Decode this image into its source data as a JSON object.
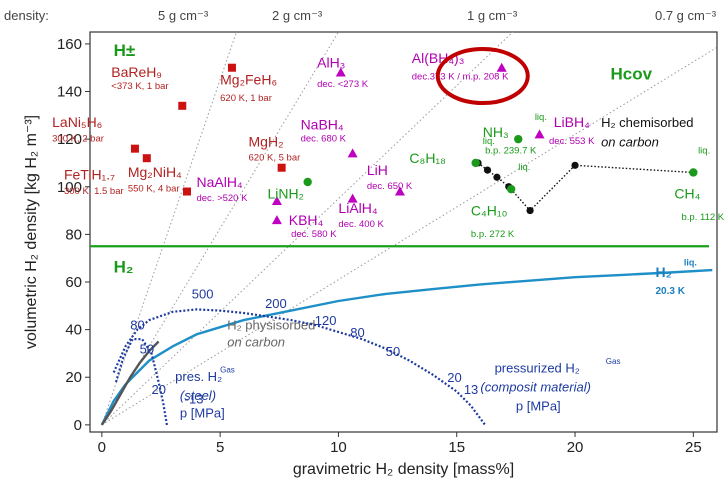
{
  "chart_data": {
    "type": "scatter",
    "xlabel": "gravimetric H₂ density [mass%]",
    "ylabel": "volumetric H₂ density [kg H₂ m⁻³]",
    "xlim": [
      -0.5,
      26
    ],
    "ylim": [
      -3,
      165
    ],
    "x_ticks": [
      0,
      5,
      10,
      15,
      20,
      25
    ],
    "y_ticks": [
      0,
      20,
      40,
      60,
      80,
      100,
      120,
      140,
      160
    ],
    "density_axis_title": "density:",
    "density_lines": [
      {
        "label": "5 g cm⁻³",
        "ratio": 29.0
      },
      {
        "label": "2 g cm⁻³",
        "ratio": 16.5
      },
      {
        "label": "1 g cm⁻³",
        "ratio": 9.5
      },
      {
        "label": "0.7 g cm⁻³",
        "ratio": 6.1
      }
    ],
    "h2_liquid_line": 75,
    "region_labels": [
      {
        "text": "H±",
        "x": 0.5,
        "y": 155,
        "color": "#1a9a1a"
      },
      {
        "text": "Hcov",
        "x": 21.5,
        "y": 145,
        "color": "#1a9a1a"
      },
      {
        "text": "H₂",
        "x": 0.5,
        "y": 64,
        "color": "#1a9a1a"
      }
    ],
    "points": [
      {
        "name": "BaReH₉",
        "note": "<373 K, 1 bar",
        "x": 3.4,
        "y": 134,
        "marker": "square",
        "color": "#cc1111"
      },
      {
        "name": "LaNi₅H₆",
        "note": "300 K, 2 bar",
        "x": 1.4,
        "y": 116,
        "marker": "square",
        "color": "#cc1111"
      },
      {
        "name": "FeTiH₁.₇",
        "note": "300 K, 1.5 bar",
        "x": 1.9,
        "y": 112,
        "marker": "square",
        "color": "#cc1111"
      },
      {
        "name": "Mg₂FeH₆",
        "note": "620 K, 1 bar",
        "x": 5.5,
        "y": 150,
        "marker": "square",
        "color": "#cc1111"
      },
      {
        "name": "Mg₂NiH₄",
        "note": "550 K, 4 bar",
        "x": 3.6,
        "y": 98,
        "marker": "square",
        "color": "#cc1111"
      },
      {
        "name": "MgH₂",
        "note": "620 K, 5 bar",
        "x": 7.6,
        "y": 108,
        "marker": "square",
        "color": "#cc1111"
      },
      {
        "name": "AlH₃",
        "note": "dec. <273 K",
        "x": 10.1,
        "y": 148,
        "marker": "triangle",
        "color": "#c000c0"
      },
      {
        "name": "Al(BH₄)₃",
        "note": "dec.373 K / m.p. 208 K",
        "x": 16.9,
        "y": 150,
        "marker": "triangle",
        "color": "#c000c0"
      },
      {
        "name": "NaBH₄",
        "note": "dec. 680 K",
        "x": 10.6,
        "y": 114,
        "marker": "triangle",
        "color": "#c000c0"
      },
      {
        "name": "LiH",
        "note": "dec. 650 K",
        "x": 12.6,
        "y": 98,
        "marker": "triangle",
        "color": "#c000c0"
      },
      {
        "name": "NaAlH₄",
        "note": "dec. >520 K",
        "x": 7.4,
        "y": 94,
        "marker": "triangle",
        "color": "#c000c0"
      },
      {
        "name": "KBH₄",
        "note": "dec. 580 K",
        "x": 7.4,
        "y": 86,
        "marker": "triangle",
        "color": "#c000c0"
      },
      {
        "name": "LiAlH₄",
        "note": "dec. 400 K",
        "x": 10.6,
        "y": 95,
        "marker": "triangle",
        "color": "#c000c0"
      },
      {
        "name": "LiBH₄",
        "note": "dec. 553 K",
        "x": 18.5,
        "y": 122,
        "marker": "triangle",
        "color": "#c000c0"
      },
      {
        "name": "LiNH₂",
        "note": "",
        "x": 8.7,
        "y": 102,
        "marker": "circle",
        "color": "#1a9a1a"
      },
      {
        "name": "NH₃",
        "note": "b.p. 239.7 K",
        "x": 17.6,
        "y": 120,
        "marker": "circle",
        "color": "#1a9a1a"
      },
      {
        "name": "C₈H₁₈",
        "note": "",
        "x": 15.8,
        "y": 110,
        "marker": "circle",
        "color": "#1a9a1a"
      },
      {
        "name": "C₄H₁₀",
        "note": "b.p. 272 K",
        "x": 17.3,
        "y": 99,
        "marker": "circle",
        "color": "#1a9a1a"
      },
      {
        "name": "CH₄",
        "note": "b.p. 112 K",
        "x": 25.0,
        "y": 106,
        "marker": "circle",
        "color": "#1a9a1a"
      }
    ],
    "liq_tags": [
      {
        "x": 16.1,
        "y": 118
      },
      {
        "x": 18.3,
        "y": 128
      },
      {
        "x": 17.6,
        "y": 107
      },
      {
        "x": 25.2,
        "y": 114
      }
    ],
    "chemisorbed_series": {
      "label": "H₂ chemisorbed",
      "label2": "on carbon",
      "points": [
        [
          15.9,
          110
        ],
        [
          16.3,
          107
        ],
        [
          16.7,
          104
        ],
        [
          17.2,
          100
        ],
        [
          18.1,
          90
        ],
        [
          20.0,
          109
        ],
        [
          25.0,
          106
        ]
      ]
    },
    "liquid_h2_curve": {
      "label": "H₂",
      "sup": "liq.",
      "note": "20.3 K",
      "points": [
        [
          0,
          0
        ],
        [
          0.5,
          10
        ],
        [
          1,
          17
        ],
        [
          1.5,
          22
        ],
        [
          2,
          27
        ],
        [
          3,
          33
        ],
        [
          4,
          38
        ],
        [
          5,
          41
        ],
        [
          6,
          44
        ],
        [
          7,
          46
        ],
        [
          8,
          48
        ],
        [
          10,
          52
        ],
        [
          12,
          55
        ],
        [
          14,
          57
        ],
        [
          16,
          59
        ],
        [
          18,
          60.5
        ],
        [
          20,
          62
        ],
        [
          22,
          63
        ],
        [
          24,
          64
        ],
        [
          25.8,
          65
        ]
      ]
    },
    "physisorbed_curve": {
      "label": "H₂ physisorbed",
      "label2": "on carbon",
      "points": [
        [
          0,
          0
        ],
        [
          0.4,
          6
        ],
        [
          0.8,
          13
        ],
        [
          1.2,
          20
        ],
        [
          1.6,
          26
        ],
        [
          2.0,
          31
        ],
        [
          2.4,
          35
        ]
      ]
    },
    "steel_pressure": {
      "label": "pres. H₂",
      "sup": "Gas",
      "material": "(steel)",
      "unit": "p [MPa]",
      "points": [
        [
          0.6,
          18
        ],
        [
          0.9,
          28
        ],
        [
          1.3,
          36
        ],
        [
          1.7,
          36
        ],
        [
          2.1,
          30
        ],
        [
          2.4,
          18
        ],
        [
          2.6,
          9
        ],
        [
          2.75,
          0
        ]
      ],
      "tick_labels": [
        {
          "text": "80",
          "x": 1.2,
          "y": 40
        },
        {
          "text": "50",
          "x": 1.6,
          "y": 30
        },
        {
          "text": "20",
          "x": 2.1,
          "y": 13
        },
        {
          "text": "-13",
          "x": 3.5,
          "y": 9
        }
      ]
    },
    "composite_pressure": {
      "label": "pressurized H₂",
      "sup": "Gas",
      "material": "(composit material)",
      "unit": "p [MPa]",
      "points": [
        [
          0.5,
          22
        ],
        [
          1,
          33
        ],
        [
          1.5,
          40
        ],
        [
          2,
          44
        ],
        [
          3,
          47.5
        ],
        [
          4,
          48.5
        ],
        [
          5,
          48
        ],
        [
          6,
          47
        ],
        [
          7,
          45.5
        ],
        [
          8,
          44
        ],
        [
          9,
          42
        ],
        [
          10,
          39
        ],
        [
          11,
          36
        ],
        [
          12,
          32
        ],
        [
          13,
          27
        ],
        [
          14,
          21
        ],
        [
          15,
          14
        ],
        [
          15.6,
          8
        ],
        [
          16.2,
          0
        ]
      ],
      "tick_labels": [
        {
          "text": "500",
          "x": 3.8,
          "y": 53
        },
        {
          "text": "200",
          "x": 6.9,
          "y": 49
        },
        {
          "text": "120",
          "x": 9.0,
          "y": 42
        },
        {
          "text": "80",
          "x": 10.5,
          "y": 37
        },
        {
          "text": "50",
          "x": 12.0,
          "y": 29
        },
        {
          "text": "20",
          "x": 14.6,
          "y": 18
        },
        {
          "text": "13",
          "x": 15.3,
          "y": 13
        }
      ]
    },
    "highlight": {
      "target": "Al(BH₄)₃"
    }
  }
}
